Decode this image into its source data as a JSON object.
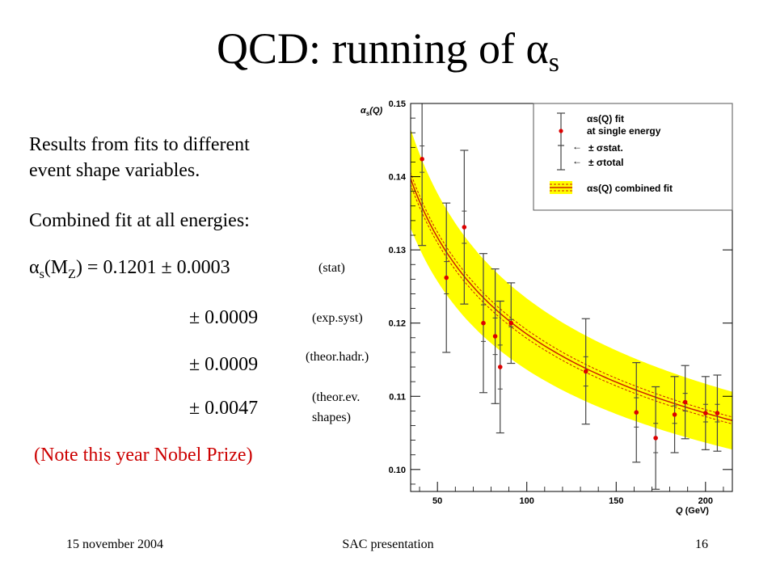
{
  "slide": {
    "title_main": "QCD: running of ",
    "title_greek": "α",
    "title_sub": "s",
    "line1": "Results from fits to different",
    "line2": "event shape variables.",
    "line3": "Combined fit at all energies:",
    "eq_alpha": "α",
    "eq_sub_s": "s",
    "eq_paren_open": "(M",
    "eq_sub_z": "Z",
    "eq_rest": ") = 0.1201 ± 0.0003",
    "err1": "± 0.0009",
    "err2": "± 0.0009",
    "err3": "± 0.0047",
    "lbl_stat": "(stat)",
    "lbl_expsyst": "(exp.syst)",
    "lbl_theorhadr": "(theor.hadr.)",
    "lbl_theorev_1": "(theor.ev.",
    "lbl_theorev_2": "shapes)",
    "note": "(Note this year Nobel Prize)"
  },
  "footer": {
    "date": "15 november 2004",
    "center": "SAC presentation",
    "page": "16"
  },
  "chart_data": {
    "type": "scatter",
    "xlabel": "Q (GeV)",
    "ylabel": "αs(Q)",
    "xlim": [
      35,
      215
    ],
    "ylim": [
      0.097,
      0.15
    ],
    "xticks": [
      50,
      100,
      150,
      200
    ],
    "yticks": [
      0.1,
      0.11,
      0.12,
      0.13,
      0.14,
      0.15
    ],
    "xtick_labels": [
      "50",
      "100",
      "150",
      "200"
    ],
    "ytick_labels": [
      "0.10",
      "0.11",
      "0.12",
      "0.13",
      "0.14",
      "0.15"
    ],
    "legend": {
      "entry1_line1": "αs(Q) fit",
      "entry1_line2": "at single energy",
      "entry2": "± σstat.",
      "entry3": "± σtotal",
      "entry4": "αs(Q) combined fit"
    },
    "points": [
      {
        "x": 41.4,
        "y": 0.1424,
        "stat": 0.0018,
        "total": 0.0118
      },
      {
        "x": 55,
        "y": 0.1262,
        "stat": 0.0022,
        "total": 0.0102
      },
      {
        "x": 65,
        "y": 0.1331,
        "stat": 0.0022,
        "total": 0.0105
      },
      {
        "x": 75.7,
        "y": 0.12,
        "stat": 0.0025,
        "total": 0.0095
      },
      {
        "x": 82.3,
        "y": 0.1182,
        "stat": 0.0025,
        "total": 0.0092
      },
      {
        "x": 85.1,
        "y": 0.114,
        "stat": 0.003,
        "total": 0.009
      },
      {
        "x": 91.2,
        "y": 0.12,
        "stat": 0.0005,
        "total": 0.0055
      },
      {
        "x": 133,
        "y": 0.1134,
        "stat": 0.002,
        "total": 0.0072
      },
      {
        "x": 161.3,
        "y": 0.1078,
        "stat": 0.002,
        "total": 0.0068
      },
      {
        "x": 172.1,
        "y": 0.1043,
        "stat": 0.002,
        "total": 0.007
      },
      {
        "x": 182.7,
        "y": 0.1075,
        "stat": 0.0012,
        "total": 0.0052
      },
      {
        "x": 188.6,
        "y": 0.1092,
        "stat": 0.0012,
        "total": 0.005
      },
      {
        "x": 200,
        "y": 0.1077,
        "stat": 0.0012,
        "total": 0.005
      },
      {
        "x": 206.6,
        "y": 0.1077,
        "stat": 0.0012,
        "total": 0.0052
      }
    ],
    "combined_fit": {
      "alpha_mz": 0.1201,
      "mz": 91.2,
      "band_halfwidth_at_mz": 0.005
    },
    "colors": {
      "band": "#ffff00",
      "curve": "#cc2200",
      "points": "#dd0000",
      "errbars": "#444444",
      "legend_border": "#555555"
    }
  }
}
